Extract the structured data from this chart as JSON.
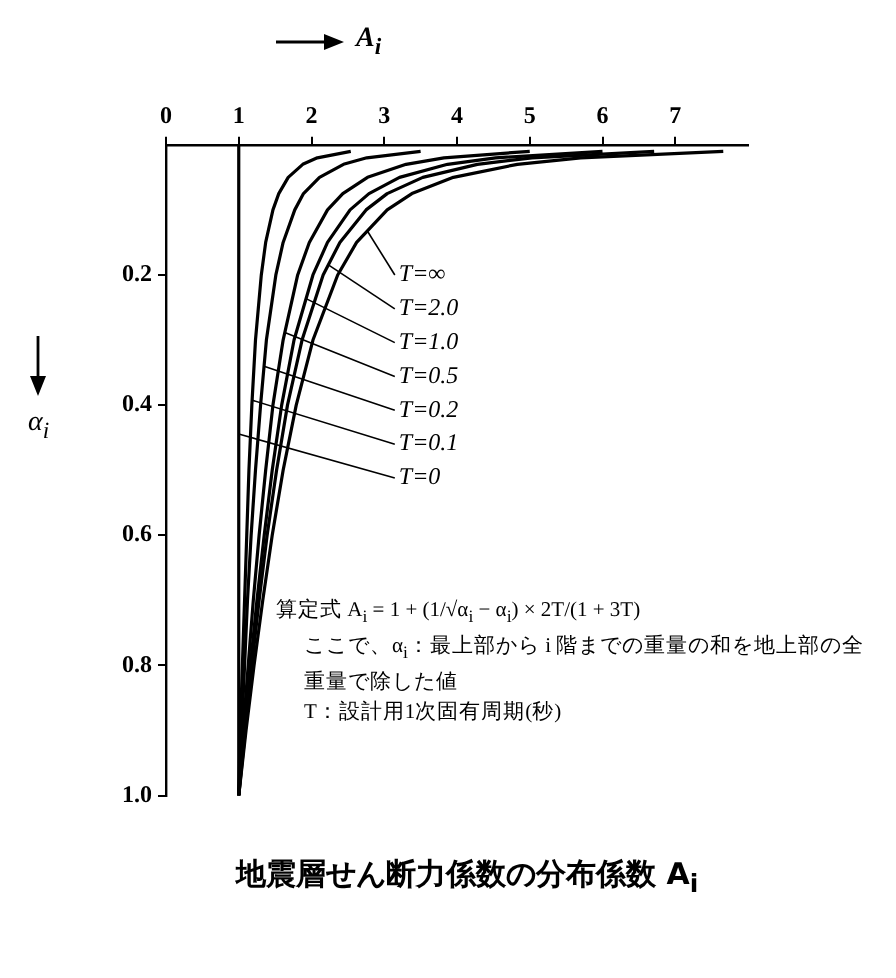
{
  "chart_data": {
    "type": "line",
    "title": "地震層せん断力係数の分布係数 A$_{i}$",
    "xlabel": "A$_{i}$",
    "ylabel": "α$_{i}$",
    "xlim": [
      0,
      8
    ],
    "xticks": [
      0,
      1,
      2,
      3,
      4,
      5,
      6,
      7
    ],
    "ylim": [
      1,
      0
    ],
    "yticks": [
      {
        "value": 0.2,
        "label": "0.2"
      },
      {
        "value": 0.4,
        "label": "0.4"
      },
      {
        "value": 0.6,
        "label": "0.6"
      },
      {
        "value": 0.8,
        "label": "0.8"
      },
      {
        "value": 1,
        "label": "1.0"
      }
    ],
    "marker": "none",
    "line_style": "solid",
    "legend": "top left",
    "series": [
      {
        "name": "T=∞",
        "color": "#000000",
        "x": [
          7.66,
          5.7,
          4.83,
          3.95,
          3.38,
          3.04,
          2.62,
          2.36,
          2.02,
          1.79,
          1.61,
          1.46,
          1.33,
          1.21,
          1.1,
          1
        ],
        "values": [
          0.01,
          0.02,
          0.03,
          0.05,
          0.075,
          0.1,
          0.15,
          0.2,
          0.3,
          0.4,
          0.5,
          0.6,
          0.7,
          0.8,
          0.9,
          1
        ]
      },
      {
        "name": "T=2.0",
        "color": "#000000",
        "x": [
          6.71,
          5.03,
          4.28,
          3.53,
          3.04,
          2.75,
          2.39,
          2.16,
          1.87,
          1.67,
          1.52,
          1.39,
          1.28,
          1.18,
          1.09,
          1
        ],
        "values": [
          0.01,
          0.02,
          0.03,
          0.05,
          0.075,
          0.1,
          0.15,
          0.2,
          0.3,
          0.4,
          0.5,
          0.6,
          0.7,
          0.8,
          0.9,
          1
        ]
      },
      {
        "name": "T=1.0",
        "color": "#000000",
        "x": [
          6.0,
          4.53,
          3.87,
          3.21,
          2.79,
          2.53,
          2.22,
          2.02,
          1.76,
          1.59,
          1.46,
          1.35,
          1.25,
          1.16,
          1.08,
          1
        ],
        "values": [
          0.01,
          0.02,
          0.03,
          0.05,
          0.075,
          0.1,
          0.15,
          0.2,
          0.3,
          0.4,
          0.5,
          0.6,
          0.7,
          0.8,
          0.9,
          1
        ]
      },
      {
        "name": "T=0.5",
        "color": "#000000",
        "x": [
          5.0,
          3.82,
          3.3,
          2.77,
          2.43,
          2.22,
          1.97,
          1.81,
          1.61,
          1.47,
          1.37,
          1.28,
          1.2,
          1.13,
          1.06,
          1
        ],
        "values": [
          0.01,
          0.02,
          0.03,
          0.05,
          0.075,
          0.1,
          0.15,
          0.2,
          0.3,
          0.4,
          0.5,
          0.6,
          0.7,
          0.8,
          0.9,
          1
        ]
      },
      {
        "name": "T=0.2",
        "color": "#000000",
        "x": [
          3.5,
          2.76,
          2.44,
          2.11,
          1.89,
          1.77,
          1.61,
          1.51,
          1.38,
          1.3,
          1.23,
          1.17,
          1.12,
          1.08,
          1.04,
          1
        ],
        "values": [
          0.01,
          0.02,
          0.03,
          0.05,
          0.075,
          0.1,
          0.15,
          0.2,
          0.3,
          0.4,
          0.5,
          0.6,
          0.7,
          0.8,
          0.9,
          1
        ]
      },
      {
        "name": "T=0.1",
        "color": "#000000",
        "x": [
          2.54,
          2.08,
          1.88,
          1.68,
          1.55,
          1.47,
          1.37,
          1.31,
          1.23,
          1.18,
          1.14,
          1.11,
          1.08,
          1.05,
          1.02,
          1
        ],
        "values": [
          0.01,
          0.02,
          0.03,
          0.05,
          0.075,
          0.1,
          0.15,
          0.2,
          0.3,
          0.4,
          0.5,
          0.6,
          0.7,
          0.8,
          0.9,
          1
        ]
      },
      {
        "name": "T=0",
        "color": "#000000",
        "x": [
          1,
          1
        ],
        "values": [
          0,
          1
        ]
      }
    ],
    "annotations": [
      "算定式 A$_{i}$ = 1 + (1/√α$_{i}$ − α$_{i}$) × 2T/(1 + 3T)",
      "ここで、α$_{i}$：最上部から i 階までの重量の和を地上部の全重量で除した値",
      "T：設計用1次固有周期(秒)"
    ]
  }
}
